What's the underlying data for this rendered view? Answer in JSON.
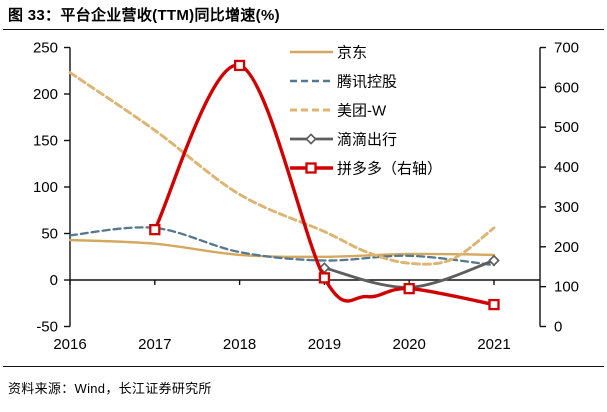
{
  "header": {
    "title": "图 33：平台企业营收(TTM)同比增速(%)"
  },
  "footer": {
    "source": "资料来源：Wind，长江证券研究所"
  },
  "chart_data": {
    "type": "line",
    "title": "平台企业营收(TTM)同比增速(%)",
    "x_ticks": [
      "2016",
      "2017",
      "2018",
      "2019",
      "2020",
      "2021"
    ],
    "grid": false,
    "legend_position": "inside-top-right",
    "left_axis": {
      "min": -50,
      "max": 250,
      "step": 50,
      "ticks": [
        250,
        200,
        150,
        100,
        50,
        0,
        -50
      ]
    },
    "right_axis": {
      "min": 0,
      "max": 700,
      "step": 100,
      "ticks": [
        700,
        600,
        500,
        400,
        300,
        200,
        100,
        0
      ]
    },
    "series": [
      {
        "key": "jd",
        "name": "京东",
        "axis": "left",
        "color": "#D5A85F",
        "dash": "",
        "width": 2.4,
        "marker": "",
        "x": [
          2016,
          2017,
          2018,
          2019,
          2020,
          2021
        ],
        "y": [
          43,
          39,
          27,
          25,
          28,
          27
        ]
      },
      {
        "key": "tencent",
        "name": "腾讯控股",
        "axis": "left",
        "color": "#56788F",
        "dash": "7,4",
        "width": 2.3,
        "marker": "",
        "x": [
          2016,
          2017,
          2018,
          2019,
          2020,
          2021
        ],
        "y": [
          48,
          56,
          30,
          21,
          26,
          16
        ]
      },
      {
        "key": "meituan",
        "name": "美团-W",
        "axis": "left",
        "color": "#DDB572",
        "dash": "7,4",
        "width": 2.9,
        "marker": "",
        "x": [
          2016,
          2017,
          2018,
          2019,
          2019.5,
          2020,
          2020.5,
          2021
        ],
        "y": [
          223,
          161,
          92,
          52,
          30,
          18,
          22,
          56
        ]
      },
      {
        "key": "didi",
        "name": "滴滴出行",
        "axis": "left",
        "color": "#5E5E5E",
        "dash": "",
        "width": 2.8,
        "marker": "diamond",
        "x": [
          2019,
          2020,
          2021
        ],
        "y": [
          13,
          -8,
          21
        ]
      },
      {
        "key": "pdd",
        "name": "拼多多（右轴）",
        "axis": "right",
        "color": "#D00000",
        "dash": "",
        "width": 3.4,
        "marker": "square",
        "x": [
          2017,
          2018,
          2019,
          2019.5,
          2020,
          2021
        ],
        "y": [
          243,
          655,
          122,
          75,
          95,
          55
        ]
      }
    ]
  }
}
